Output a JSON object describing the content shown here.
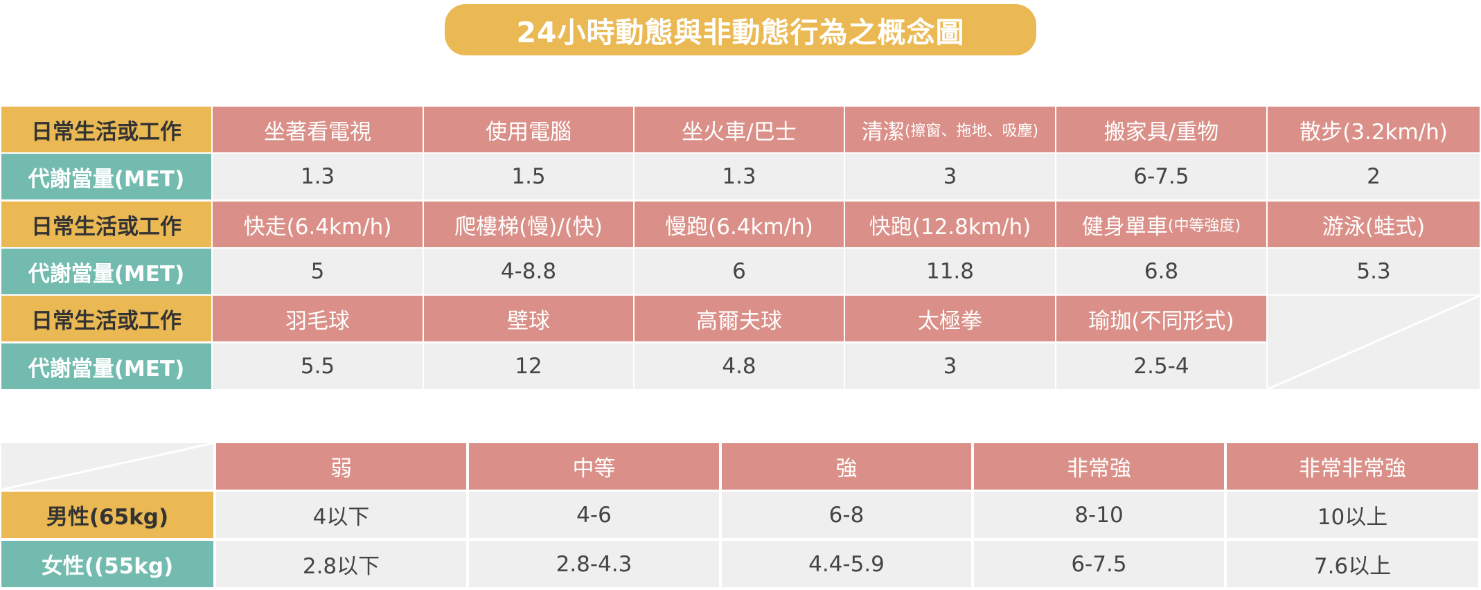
{
  "title": "24小時動態與非動態行為之概念圖",
  "labels": {
    "activity_header": "日常生活或工作",
    "met_header": "代謝當量(MET)"
  },
  "table1": {
    "rows": [
      {
        "activities": [
          {
            "main": "坐著看電視",
            "sub": ""
          },
          {
            "main": "使用電腦",
            "sub": ""
          },
          {
            "main": "坐火車/巴士",
            "sub": ""
          },
          {
            "main": "清潔",
            "sub": "(擦窗、拖地、吸塵)"
          },
          {
            "main": "搬家具/重物",
            "sub": ""
          },
          {
            "main": "散步(3.2km/h)",
            "sub": ""
          }
        ],
        "mets": [
          "1.3",
          "1.5",
          "1.3",
          "3",
          "6-7.5",
          "2"
        ]
      },
      {
        "activities": [
          {
            "main": "快走(6.4km/h)",
            "sub": ""
          },
          {
            "main": "爬樓梯(慢)/(快)",
            "sub": ""
          },
          {
            "main": "慢跑(6.4km/h)",
            "sub": ""
          },
          {
            "main": "快跑(12.8km/h)",
            "sub": ""
          },
          {
            "main": "健身單車",
            "sub": "(中等強度)"
          },
          {
            "main": "游泳(蛙式)",
            "sub": ""
          }
        ],
        "mets": [
          "5",
          "4-8.8",
          "6",
          "11.8",
          "6.8",
          "5.3"
        ]
      },
      {
        "activities": [
          {
            "main": "羽毛球",
            "sub": ""
          },
          {
            "main": "壁球",
            "sub": ""
          },
          {
            "main": "高爾夫球",
            "sub": ""
          },
          {
            "main": "太極拳",
            "sub": ""
          },
          {
            "main": "瑜珈(不同形式)",
            "sub": ""
          }
        ],
        "mets": [
          "5.5",
          "12",
          "4.8",
          "3",
          "2.5-4"
        ]
      }
    ]
  },
  "table2": {
    "columns": [
      "弱",
      "中等",
      "強",
      "非常強",
      "非常非常強"
    ],
    "rows": [
      {
        "label": "男性(65kg)",
        "values": [
          "4以下",
          "4-6",
          "6-8",
          "8-10",
          "10以上"
        ]
      },
      {
        "label": "女性((55kg)",
        "values": [
          "2.8以下",
          "2.8-4.3",
          "4.4-5.9",
          "6-7.5",
          "7.6以上"
        ]
      }
    ]
  },
  "colors": {
    "yellow": "#EBB954",
    "teal": "#72BBAE",
    "salmon": "#DA9088",
    "light_gray": "#EFEFEF"
  }
}
